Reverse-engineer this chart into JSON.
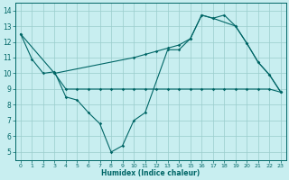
{
  "line_zigzag_x": [
    0,
    1,
    2,
    3,
    4,
    5,
    6,
    7,
    8,
    9,
    10,
    11,
    13,
    14,
    15,
    16,
    17,
    19,
    20,
    21,
    22,
    23
  ],
  "line_zigzag_y": [
    12.5,
    10.9,
    10.0,
    10.1,
    8.5,
    8.3,
    7.5,
    6.8,
    5.0,
    5.4,
    7.0,
    7.5,
    11.5,
    11.5,
    12.2,
    13.7,
    13.5,
    13.0,
    11.9,
    10.7,
    9.9,
    8.8
  ],
  "line_rise_x": [
    0,
    3,
    10,
    11,
    12,
    13,
    14,
    15,
    16,
    17,
    18,
    19,
    20,
    21,
    22,
    23
  ],
  "line_rise_y": [
    12.5,
    10.0,
    11.0,
    11.2,
    11.4,
    11.6,
    11.8,
    12.2,
    13.7,
    13.5,
    13.7,
    13.0,
    11.9,
    10.7,
    9.9,
    8.8
  ],
  "line_flat_x": [
    3,
    4,
    5,
    6,
    7,
    8,
    9,
    10,
    11,
    12,
    13,
    14,
    15,
    16,
    17,
    18,
    19,
    20,
    21,
    22,
    23
  ],
  "line_flat_y": [
    10.0,
    9.0,
    9.0,
    9.0,
    9.0,
    9.0,
    9.0,
    9.0,
    9.0,
    9.0,
    9.0,
    9.0,
    9.0,
    9.0,
    9.0,
    9.0,
    9.0,
    9.0,
    9.0,
    9.0,
    8.8
  ],
  "color": "#006666",
  "bg_color": "#c8eef0",
  "grid_color": "#99cccc",
  "xlabel": "Humidex (Indice chaleur)",
  "xlim": [
    -0.5,
    23.5
  ],
  "ylim": [
    4.5,
    14.5
  ],
  "yticks": [
    5,
    6,
    7,
    8,
    9,
    10,
    11,
    12,
    13,
    14
  ],
  "xticks": [
    0,
    1,
    2,
    3,
    4,
    5,
    6,
    7,
    8,
    9,
    10,
    11,
    12,
    13,
    14,
    15,
    16,
    17,
    18,
    19,
    20,
    21,
    22,
    23
  ]
}
